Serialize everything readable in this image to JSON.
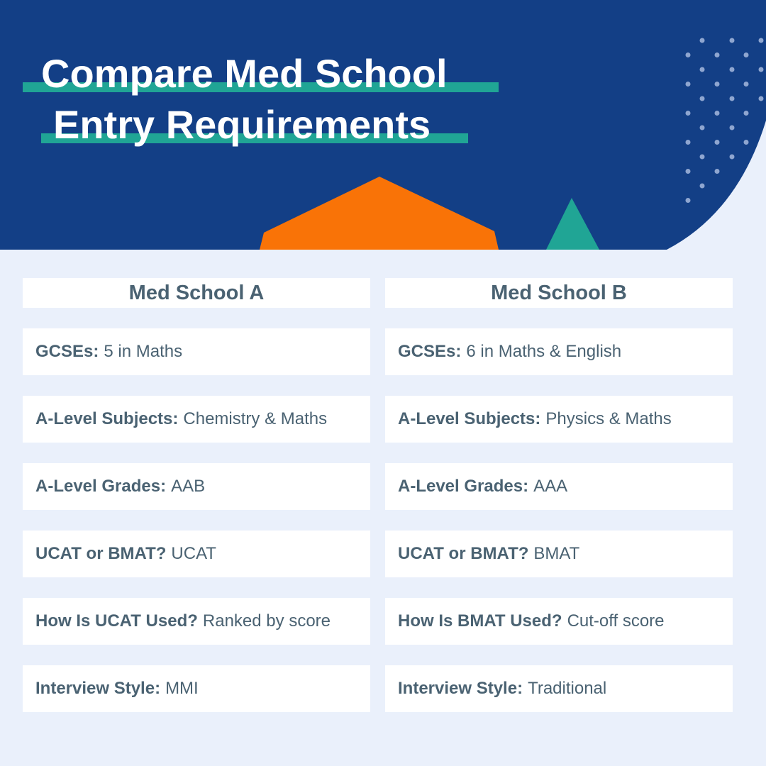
{
  "title": {
    "line1": "Compare Med School",
    "line2": "Entry Requirements"
  },
  "columns": [
    {
      "header": "Med School A",
      "rows": [
        {
          "label": "GCSEs:",
          "value": "5 in Maths"
        },
        {
          "label": "A-Level Subjects:",
          "value": "Chemistry & Maths"
        },
        {
          "label": "A-Level Grades:",
          "value": "AAB"
        },
        {
          "label": "UCAT or BMAT?",
          "value": "UCAT"
        },
        {
          "label": "How Is UCAT Used?",
          "value": "Ranked by score"
        },
        {
          "label": "Interview Style:",
          "value": "MMI"
        }
      ]
    },
    {
      "header": "Med School B",
      "rows": [
        {
          "label": "GCSEs:",
          "value": "6 in Maths & English"
        },
        {
          "label": "A-Level Subjects:",
          "value": "Physics & Maths"
        },
        {
          "label": "A-Level Grades:",
          "value": "AAA"
        },
        {
          "label": "UCAT or BMAT?",
          "value": "BMAT"
        },
        {
          "label": "How Is BMAT Used?",
          "value": "Cut-off score"
        },
        {
          "label": "Interview Style:",
          "value": "Traditional"
        }
      ]
    }
  ]
}
